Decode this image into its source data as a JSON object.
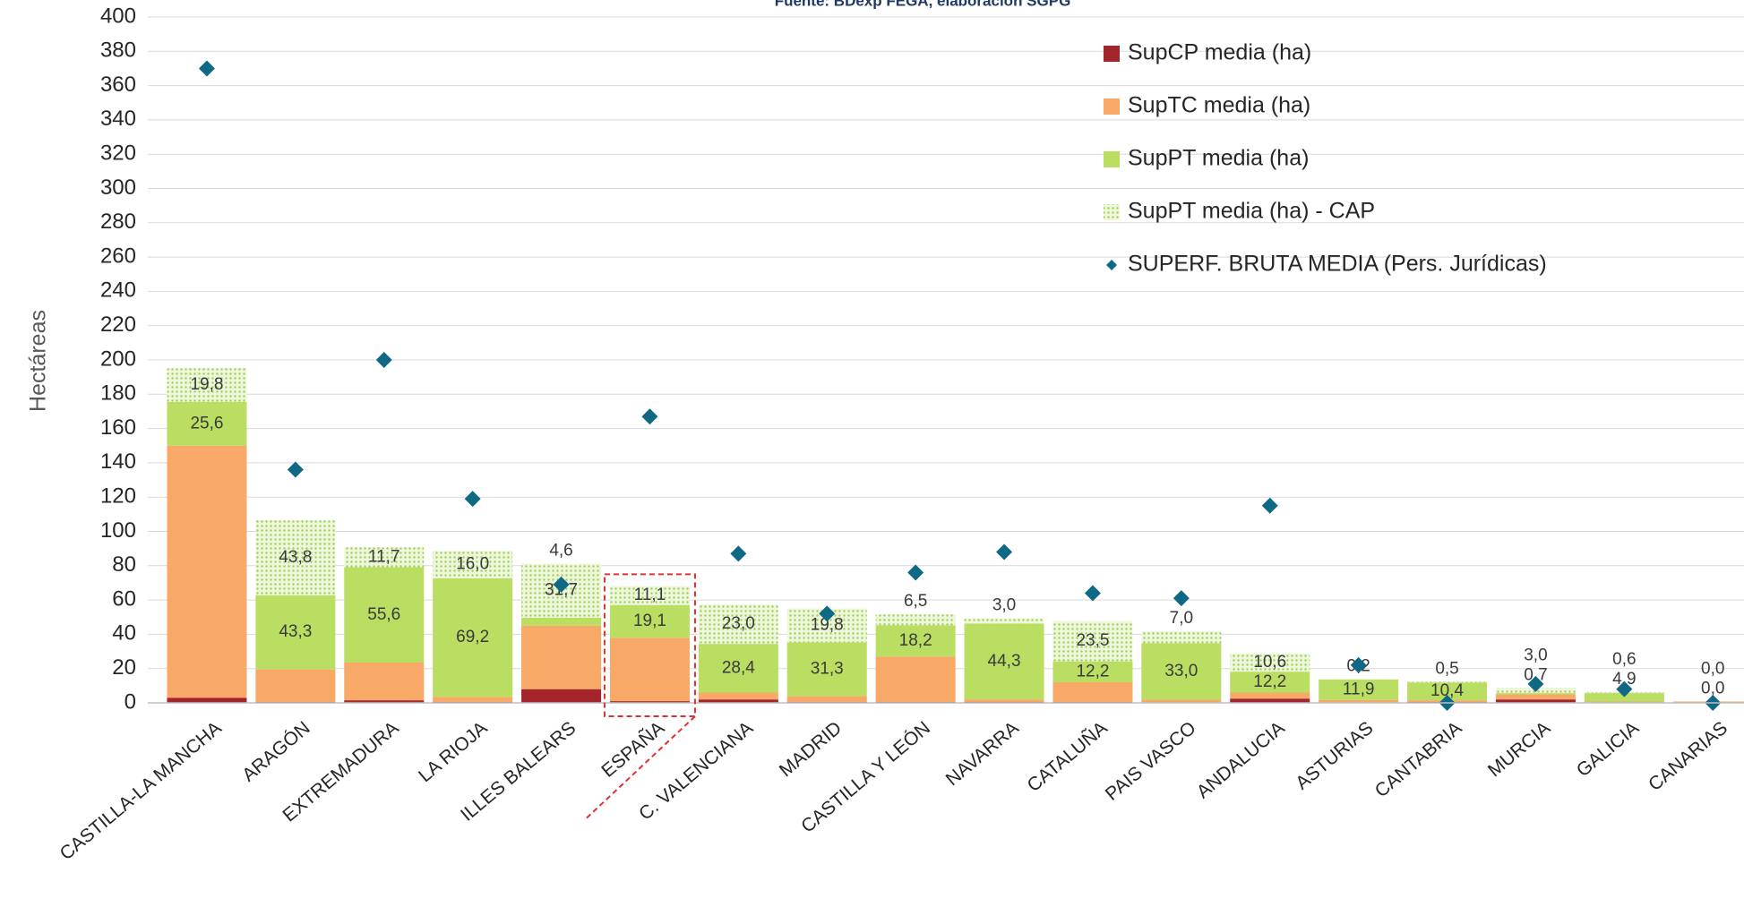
{
  "chart_data": {
    "type": "bar",
    "stacked": true,
    "subtitle": "Fuente: BDexp FEGA, elaboración SGPG",
    "y_label": "Hectáreas",
    "categories": [
      "CASTILLA-LA MANCHA",
      "ARAGÓN",
      "EXTREMADURA",
      "LA RIOJA",
      "ILLES BALEARS",
      "ESPAÑA",
      "C. VALENCIANA",
      "MADRID",
      "CASTILLA Y LEÓN",
      "NAVARRA",
      "CATALUÑA",
      "PAIS VASCO",
      "ANDALUCIA",
      "ASTURIAS",
      "CANTABRIA",
      "MURCIA",
      "GALICIA",
      "CANARIAS"
    ],
    "series": [
      {
        "name": "SupCP media (ha)",
        "color": "#a3252b",
        "values": [
          3,
          0.5,
          1.5,
          0.5,
          8,
          1,
          2,
          0.5,
          0.5,
          0.5,
          0.5,
          0.3,
          2.5,
          0.2,
          0.5,
          2,
          0.3,
          0
        ]
      },
      {
        "name": "SupTC media (ha)",
        "color": "#f8a867",
        "values": [
          147,
          19,
          22,
          3,
          37,
          37,
          4,
          3.5,
          26.5,
          1.5,
          11.5,
          1.5,
          3.5,
          1.5,
          1,
          3,
          0.5,
          0.8
        ]
      },
      {
        "name": "SupPT media (ha)",
        "color": "#b9de62",
        "values": [
          25.6,
          43.3,
          55.6,
          69.2,
          4.6,
          19.1,
          28.4,
          31.3,
          18.2,
          44.3,
          12.2,
          33.0,
          12.2,
          11.9,
          10.4,
          0.7,
          4.9,
          0.0
        ],
        "value_labels": [
          "25,6",
          "43,3",
          "55,6",
          "69,2",
          "4,6",
          "19,1",
          "28,4",
          "31,3",
          "18,2",
          "44,3",
          "12,2",
          "33,0",
          "12,2",
          "11,9",
          "10,4",
          "0,7",
          "4,9",
          "0,0"
        ]
      },
      {
        "name": "SupPT media (ha) - CAP",
        "color": "#c9e79a",
        "pattern": "dots",
        "values": [
          19.8,
          43.8,
          11.7,
          16.0,
          31.7,
          11.1,
          23.0,
          19.8,
          6.5,
          3.0,
          23.5,
          7.0,
          10.6,
          0.2,
          0.5,
          3.0,
          0.6,
          0.0
        ],
        "value_labels": [
          "19,8",
          "43,8",
          "11,7",
          "16,0",
          "31,7",
          "11,1",
          "23,0",
          "19,8",
          "6,5",
          "3,0",
          "23,5",
          "7,0",
          "10,6",
          "0,2",
          "0,5",
          "3,0",
          "0,6",
          "0,0"
        ]
      },
      {
        "name": "SUPERF. BRUTA MEDIA (Pers. Jurídicas)",
        "color": "#0f6985",
        "type": "scatter",
        "values": [
          370,
          136,
          200,
          119,
          69,
          167,
          87,
          52,
          76,
          88,
          64,
          61,
          115,
          22,
          0,
          11,
          8,
          0
        ]
      }
    ],
    "ylim": [
      0,
      400
    ],
    "yticks": [
      0,
      20,
      40,
      60,
      80,
      100,
      120,
      140,
      160,
      180,
      200,
      220,
      240,
      260,
      280,
      300,
      320,
      340,
      360,
      380,
      400
    ],
    "grid": true
  }
}
